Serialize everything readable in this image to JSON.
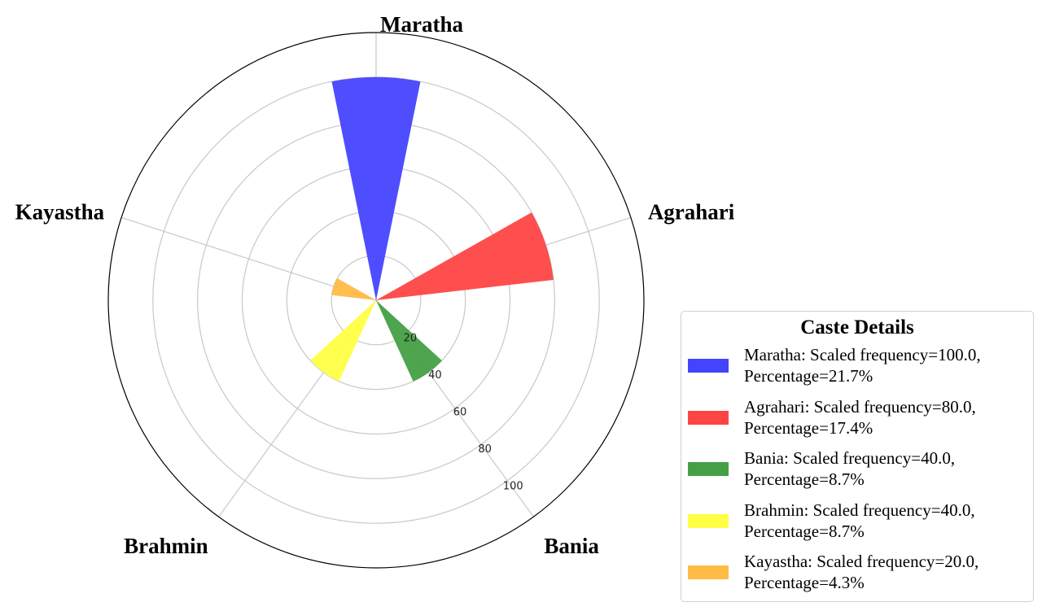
{
  "chart_data": {
    "type": "polar-bar",
    "categories": [
      "Maratha",
      "Agrahari",
      "Bania",
      "Brahmin",
      "Kayastha"
    ],
    "series": [
      {
        "values": [
          100.0,
          80.0,
          40.0,
          40.0,
          20.0
        ],
        "colors": [
          "#4444ff",
          "#ff4444",
          "#44a044",
          "#ffff44",
          "#ffbb44"
        ]
      }
    ],
    "radial_ticks": [
      20,
      40,
      60,
      80,
      100
    ],
    "rlim": [
      0,
      120
    ],
    "grid": true,
    "legend": {
      "title": "Caste Details",
      "placement": "bottom-right",
      "entries": [
        {
          "line1": "Maratha: Scaled frequency=100.0,",
          "line2": "Percentage=21.7%",
          "color": "#4444ff"
        },
        {
          "line1": "Agrahari: Scaled frequency=80.0,",
          "line2": "Percentage=17.4%",
          "color": "#ff4444"
        },
        {
          "line1": "Bania: Scaled frequency=40.0,",
          "line2": "Percentage=8.7%",
          "color": "#44a044"
        },
        {
          "line1": "Brahmin: Scaled frequency=40.0,",
          "line2": "Percentage=8.7%",
          "color": "#ffff44"
        },
        {
          "line1": "Kayastha: Scaled frequency=20.0,",
          "line2": "Percentage=4.3%",
          "color": "#ffbb44"
        }
      ]
    }
  }
}
